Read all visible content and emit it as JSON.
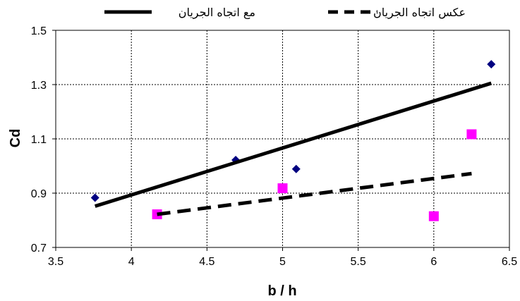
{
  "chart_data": {
    "type": "scatter",
    "xlabel": "b / h",
    "ylabel": "Cd",
    "xlim": [
      3.5,
      6.5
    ],
    "ylim": [
      0.7,
      1.5
    ],
    "x_ticks": [
      3.5,
      4,
      4.5,
      5,
      5.5,
      6,
      6.5
    ],
    "y_ticks": [
      0.7,
      0.9,
      1.1,
      1.3,
      1.5
    ],
    "grid": "dashed",
    "legend_position": "top",
    "series": [
      {
        "name": "مع اتجاه الجريان",
        "marker": "diamond",
        "color": "#000080",
        "points": [
          {
            "x": 3.76,
            "y": 0.883
          },
          {
            "x": 4.69,
            "y": 1.022
          },
          {
            "x": 5.09,
            "y": 0.989
          },
          {
            "x": 6.38,
            "y": 1.375
          }
        ],
        "trendline": {
          "style": "solid",
          "color": "#000000",
          "x": [
            3.76,
            6.38
          ],
          "y": [
            0.852,
            1.305
          ]
        }
      },
      {
        "name": "عكس اتجاه الجريان",
        "marker": "square",
        "color": "#ff00ff",
        "points": [
          {
            "x": 4.17,
            "y": 0.822
          },
          {
            "x": 5.0,
            "y": 0.918
          },
          {
            "x": 6.0,
            "y": 0.815
          },
          {
            "x": 6.25,
            "y": 1.117
          }
        ],
        "trendline": {
          "style": "dashed",
          "color": "#000000",
          "x": [
            4.17,
            6.25
          ],
          "y": [
            0.822,
            0.972
          ]
        }
      }
    ]
  }
}
